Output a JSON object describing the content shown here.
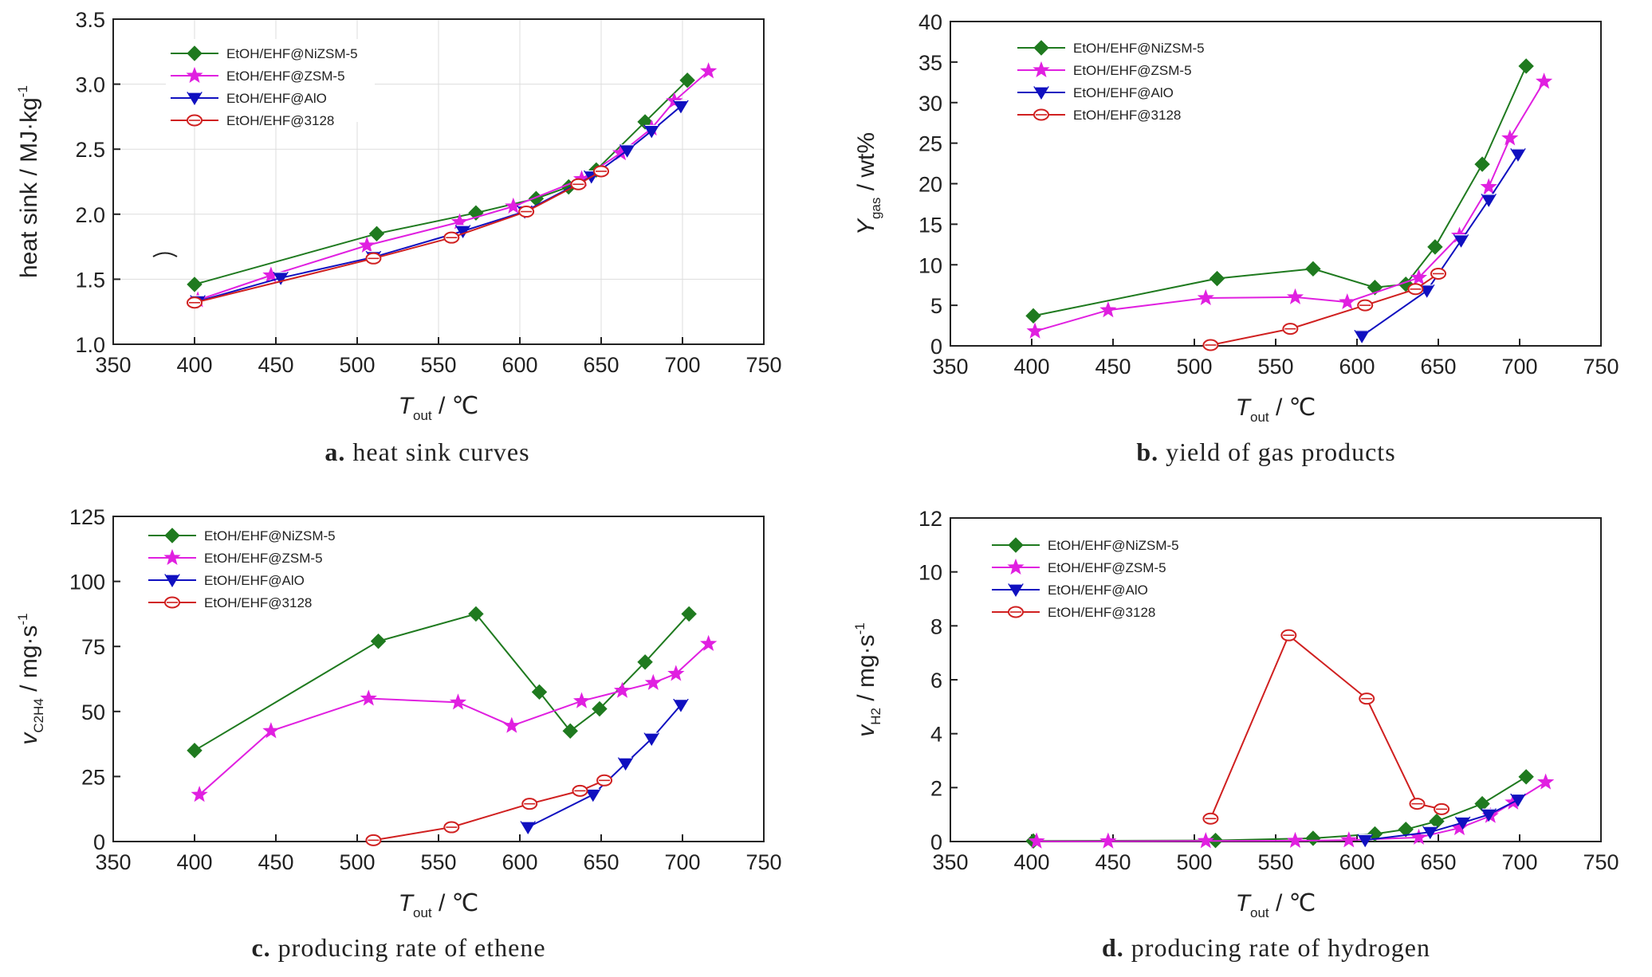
{
  "colors": {
    "series": [
      "#1f7a1f",
      "#e020e0",
      "#1010c0",
      "#d02020"
    ],
    "grid": "#dddddd",
    "axis": "#222222"
  },
  "markers": [
    "diamond",
    "star",
    "triangle-down",
    "circle"
  ],
  "series_names": [
    "EtOH/EHF@NiZSM-5",
    "EtOH/EHF@ZSM-5",
    "EtOH/EHF@AlO",
    "EtOH/EHF@3128"
  ],
  "chart_data": [
    {
      "type": "line",
      "caption_letter": "a.",
      "caption": "heat sink curves",
      "ylabel": "heat sink / MJ·kg",
      "ylabel_sup": "-1",
      "xlabel_main": "T",
      "xlabel_sub": "out",
      "xlabel_unit": " / ℃",
      "xlim": [
        350,
        750
      ],
      "xticks": [
        "350",
        "400",
        "450",
        "500",
        "550",
        "600",
        "650",
        "700",
        "750"
      ],
      "ylim": [
        1.0,
        3.5
      ],
      "yticks": [
        "1.0",
        "1.5",
        "2.0",
        "2.5",
        "3.0",
        "3.5"
      ],
      "grid": true,
      "legend_position": "top-left",
      "series": [
        {
          "name": "EtOH/EHF@NiZSM-5",
          "x": [
            400,
            512,
            573,
            610,
            630,
            647,
            677,
            703
          ],
          "y": [
            1.46,
            1.85,
            2.01,
            2.12,
            2.21,
            2.34,
            2.71,
            3.03
          ]
        },
        {
          "name": "EtOH/EHF@ZSM-5",
          "x": [
            402,
            447,
            506,
            563,
            596,
            638,
            662,
            681,
            695,
            716
          ],
          "y": [
            1.34,
            1.53,
            1.76,
            1.94,
            2.06,
            2.27,
            2.47,
            2.66,
            2.87,
            3.1
          ]
        },
        {
          "name": "EtOH/EHF@AlO",
          "x": [
            402,
            453,
            510,
            565,
            603,
            644,
            666,
            681,
            699
          ],
          "y": [
            1.33,
            1.51,
            1.67,
            1.87,
            2.02,
            2.29,
            2.49,
            2.64,
            2.83
          ]
        },
        {
          "name": "EtOH/EHF@3128",
          "x": [
            400,
            510,
            558,
            604,
            636,
            650
          ],
          "y": [
            1.32,
            1.66,
            1.82,
            2.02,
            2.23,
            2.33
          ]
        }
      ]
    },
    {
      "type": "line",
      "caption_letter": "b.",
      "caption": "yield of gas products",
      "ylabel": "Y",
      "ylabel_sub": "gas",
      "ylabel_unit": " / wt%",
      "xlabel_main": "T",
      "xlabel_sub": "out",
      "xlabel_unit": " / ℃",
      "xlim": [
        350,
        750
      ],
      "xticks": [
        "350",
        "400",
        "450",
        "500",
        "550",
        "600",
        "650",
        "700",
        "750"
      ],
      "ylim": [
        0,
        40
      ],
      "yticks": [
        "0",
        "5",
        "10",
        "15",
        "20",
        "25",
        "30",
        "35",
        "40"
      ],
      "grid": false,
      "legend_position": "top-left",
      "series": [
        {
          "name": "EtOH/EHF@NiZSM-5",
          "x": [
            401,
            514,
            573,
            611,
            630,
            648,
            677,
            704
          ],
          "y": [
            3.7,
            8.3,
            9.5,
            7.2,
            7.6,
            12.2,
            22.4,
            34.5
          ]
        },
        {
          "name": "EtOH/EHF@ZSM-5",
          "x": [
            402,
            447,
            507,
            562,
            594,
            638,
            663,
            681,
            694,
            715
          ],
          "y": [
            1.8,
            4.4,
            5.9,
            6.0,
            5.4,
            8.4,
            13.6,
            19.6,
            25.6,
            32.6
          ]
        },
        {
          "name": "EtOH/EHF@AlO",
          "x": [
            603,
            643,
            664,
            681,
            699
          ],
          "y": [
            1.2,
            6.8,
            13.0,
            18.0,
            23.6
          ]
        },
        {
          "name": "EtOH/EHF@3128",
          "x": [
            510,
            559,
            605,
            636,
            650
          ],
          "y": [
            0.1,
            2.1,
            5.0,
            7.0,
            8.9
          ]
        }
      ]
    },
    {
      "type": "line",
      "caption_letter": "c.",
      "caption": "producing rate of ethene",
      "ylabel": "v",
      "ylabel_sub": "C2H4",
      "ylabel_unit": " / mg·s",
      "ylabel_sup": "-1",
      "xlabel_main": "T",
      "xlabel_sub": "out",
      "xlabel_unit": " / ℃",
      "xlim": [
        350,
        750
      ],
      "xticks": [
        "350",
        "400",
        "450",
        "500",
        "550",
        "600",
        "650",
        "700",
        "750"
      ],
      "ylim": [
        0,
        125
      ],
      "yticks": [
        "0",
        "25",
        "50",
        "75",
        "100",
        "125"
      ],
      "grid": false,
      "legend_position": "top-left",
      "series": [
        {
          "name": "EtOH/EHF@NiZSM-5",
          "x": [
            400,
            513,
            573,
            612,
            631,
            649,
            677,
            704
          ],
          "y": [
            35,
            77,
            87.5,
            57.5,
            42.5,
            51,
            69,
            87.5
          ]
        },
        {
          "name": "EtOH/EHF@ZSM-5",
          "x": [
            403,
            447,
            507,
            562,
            595,
            638,
            663,
            682,
            696,
            716
          ],
          "y": [
            18,
            42.5,
            55,
            53.5,
            44.5,
            54,
            58,
            61,
            64.5,
            76
          ]
        },
        {
          "name": "EtOH/EHF@AlO",
          "x": [
            605,
            645,
            665,
            681,
            699
          ],
          "y": [
            5.5,
            18,
            30,
            39.5,
            52.5
          ]
        },
        {
          "name": "EtOH/EHF@3128",
          "x": [
            510,
            558,
            606,
            637,
            652
          ],
          "y": [
            0.5,
            5.5,
            14.5,
            19.5,
            23.5
          ]
        }
      ]
    },
    {
      "type": "line",
      "caption_letter": "d.",
      "caption": "producing rate of hydrogen",
      "ylabel": "v",
      "ylabel_sub": "H2",
      "ylabel_unit": " / mg·s",
      "ylabel_sup": "-1",
      "xlabel_main": "T",
      "xlabel_sub": "out",
      "xlabel_unit": " / ℃",
      "xlim": [
        350,
        750
      ],
      "xticks": [
        "350",
        "400",
        "450",
        "500",
        "550",
        "600",
        "650",
        "700",
        "750"
      ],
      "ylim": [
        0,
        12
      ],
      "yticks": [
        "0",
        "2",
        "4",
        "6",
        "8",
        "10",
        "12"
      ],
      "grid": false,
      "legend_position": "top-left",
      "series": [
        {
          "name": "EtOH/EHF@NiZSM-5",
          "x": [
            401,
            513,
            573,
            611,
            630,
            649,
            677,
            704
          ],
          "y": [
            0.02,
            0.04,
            0.12,
            0.28,
            0.45,
            0.75,
            1.4,
            2.4
          ]
        },
        {
          "name": "EtOH/EHF@ZSM-5",
          "x": [
            403,
            447,
            507,
            562,
            595,
            638,
            663,
            682,
            696,
            716
          ],
          "y": [
            0.01,
            0.01,
            0.02,
            0.03,
            0.05,
            0.15,
            0.5,
            0.95,
            1.45,
            2.2
          ]
        },
        {
          "name": "EtOH/EHF@AlO",
          "x": [
            605,
            645,
            665,
            681,
            699
          ],
          "y": [
            0.05,
            0.35,
            0.7,
            1.0,
            1.55
          ]
        },
        {
          "name": "EtOH/EHF@3128",
          "x": [
            510,
            558,
            606,
            637,
            652
          ],
          "y": [
            0.85,
            7.65,
            5.3,
            1.4,
            1.2
          ]
        }
      ]
    }
  ]
}
